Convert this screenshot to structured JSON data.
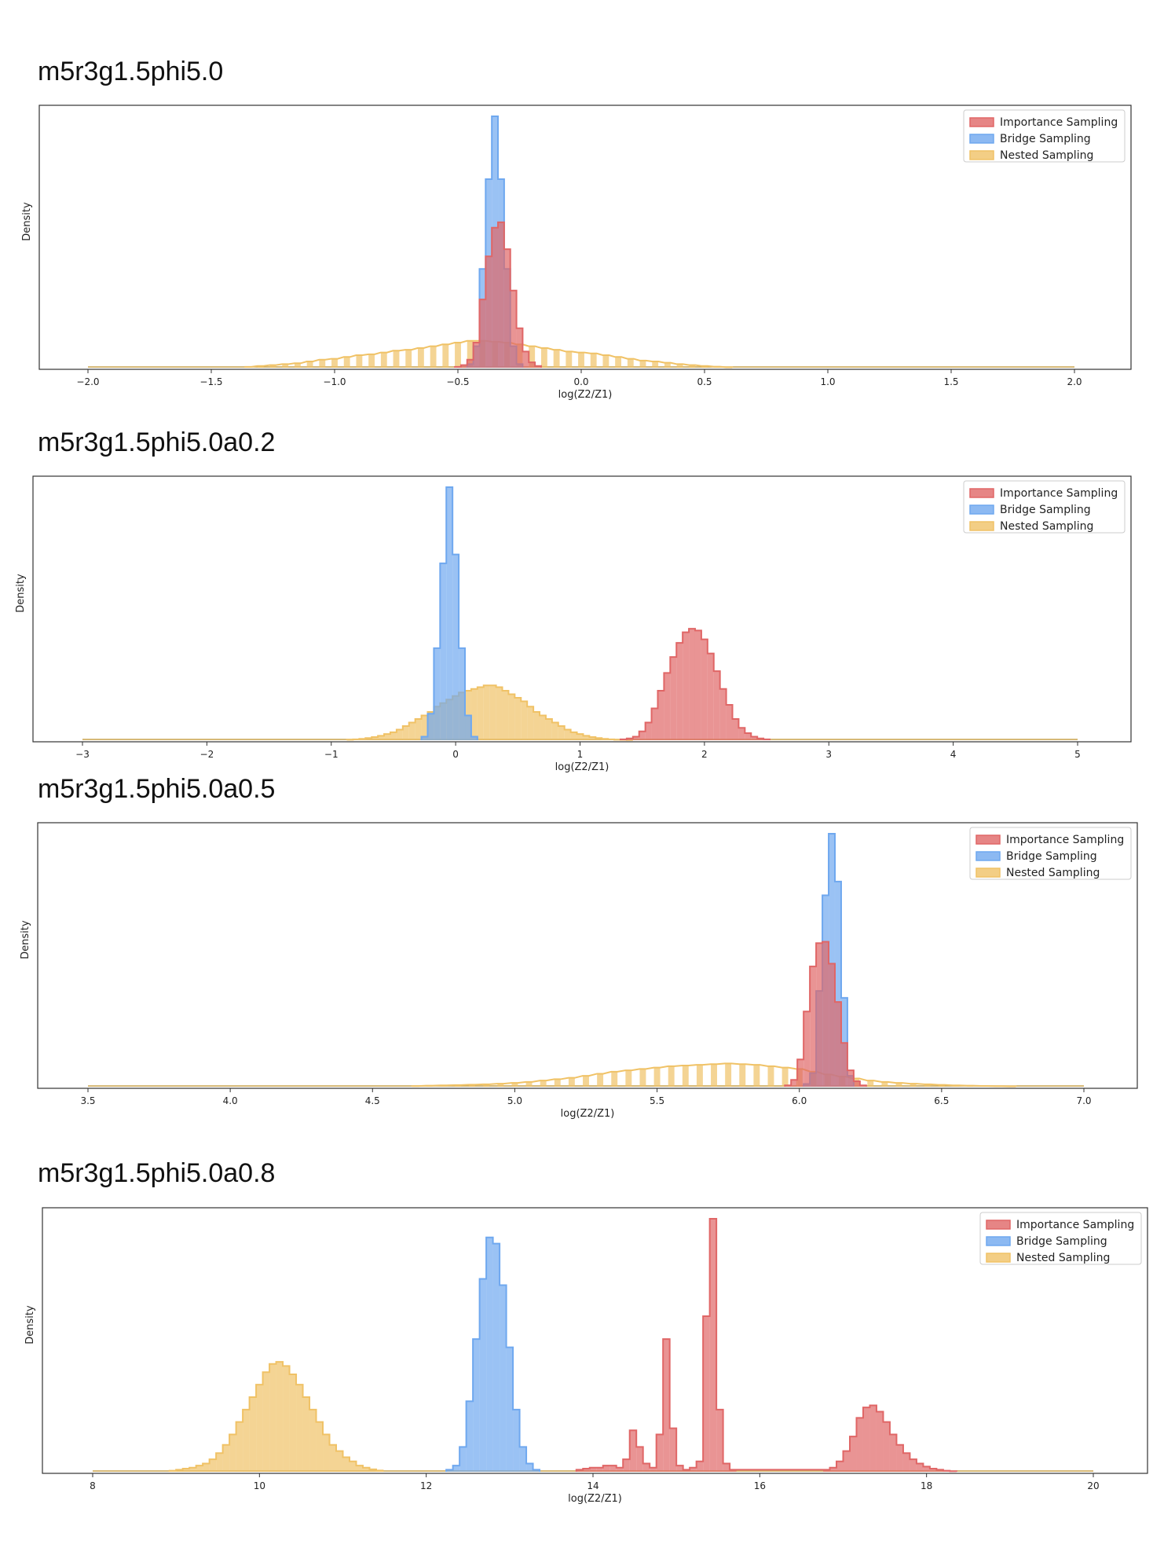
{
  "colors": {
    "Importance Sampling": "#e06666",
    "Bridge Sampling": "#6fa8ef",
    "Nested Sampling": "#f0c266"
  },
  "chart_data": [
    {
      "type": "histogram",
      "title": "m5r3g1.5phi5.0",
      "xlabel": "log(Z2/Z1)",
      "ylabel": "Density",
      "xlim": [
        -2.0,
        2.0
      ],
      "xticks": [
        -2.0,
        -1.5,
        -1.0,
        -0.5,
        0.0,
        0.5,
        1.0,
        1.5,
        2.0
      ],
      "xtick_labels": [
        "−2.0",
        "−1.5",
        "−1.0",
        "−0.5",
        "0.0",
        "0.5",
        "1.0",
        "1.5",
        "2.0"
      ],
      "legend": "top-right",
      "series": [
        {
          "name": "Importance Sampling",
          "bin_width": 0.025,
          "x": [
            -0.5,
            -0.475,
            -0.45,
            -0.425,
            -0.4,
            -0.375,
            -0.35,
            -0.325,
            -0.3,
            -0.275,
            -0.25,
            -0.225,
            -0.2,
            -0.175
          ],
          "values": [
            0.005,
            0.015,
            0.045,
            0.14,
            0.38,
            0.62,
            0.78,
            0.81,
            0.66,
            0.43,
            0.22,
            0.09,
            0.03,
            0.01
          ]
        },
        {
          "name": "Bridge Sampling",
          "bin_width": 0.025,
          "x": [
            -0.45,
            -0.425,
            -0.4,
            -0.375,
            -0.35,
            -0.325,
            -0.3,
            -0.275,
            -0.25
          ],
          "values": [
            0.02,
            0.12,
            0.55,
            1.05,
            1.4,
            1.05,
            0.55,
            0.12,
            0.02
          ]
        },
        {
          "name": "Nested Sampling",
          "bin_width": 0.025,
          "x": [
            -1.35,
            -1.3,
            -1.25,
            -1.2,
            -1.15,
            -1.1,
            -1.05,
            -1.0,
            -0.95,
            -0.9,
            -0.85,
            -0.8,
            -0.75,
            -0.7,
            -0.65,
            -0.6,
            -0.55,
            -0.5,
            -0.45,
            -0.4,
            -0.35,
            -0.3,
            -0.25,
            -0.2,
            -0.15,
            -0.1,
            -0.05,
            0.0,
            0.05,
            0.1,
            0.15,
            0.2,
            0.25,
            0.3,
            0.35,
            0.4,
            0.45,
            0.5,
            0.55,
            0.6
          ],
          "values": [
            0.005,
            0.01,
            0.015,
            0.02,
            0.025,
            0.035,
            0.045,
            0.05,
            0.06,
            0.07,
            0.075,
            0.085,
            0.095,
            0.1,
            0.11,
            0.12,
            0.13,
            0.14,
            0.15,
            0.15,
            0.145,
            0.14,
            0.13,
            0.12,
            0.11,
            0.1,
            0.09,
            0.085,
            0.08,
            0.07,
            0.06,
            0.05,
            0.04,
            0.035,
            0.028,
            0.02,
            0.015,
            0.01,
            0.006,
            0.003
          ]
        }
      ]
    },
    {
      "type": "histogram",
      "title": "m5r3g1.5phi5.0a0.2",
      "xlabel": "log(Z2/Z1)",
      "ylabel": "Density",
      "xlim": [
        -3,
        5
      ],
      "xticks": [
        -3,
        -2,
        -1,
        0,
        1,
        2,
        3,
        4,
        5
      ],
      "xtick_labels": [
        "−3",
        "−2",
        "−1",
        "0",
        "1",
        "2",
        "3",
        "4",
        "5"
      ],
      "legend": "top-right",
      "series": [
        {
          "name": "Importance Sampling",
          "bin_width": 0.05,
          "x": [
            1.35,
            1.4,
            1.45,
            1.5,
            1.55,
            1.6,
            1.65,
            1.7,
            1.75,
            1.8,
            1.85,
            1.9,
            1.95,
            2.0,
            2.05,
            2.1,
            2.15,
            2.2,
            2.25,
            2.3,
            2.35,
            2.4,
            2.45,
            2.5
          ],
          "values": [
            0.005,
            0.01,
            0.02,
            0.05,
            0.1,
            0.18,
            0.28,
            0.38,
            0.47,
            0.55,
            0.61,
            0.63,
            0.62,
            0.57,
            0.49,
            0.39,
            0.29,
            0.2,
            0.12,
            0.07,
            0.04,
            0.02,
            0.01,
            0.005
          ]
        },
        {
          "name": "Bridge Sampling",
          "bin_width": 0.05,
          "x": [
            -0.25,
            -0.2,
            -0.15,
            -0.1,
            -0.05,
            0.0,
            0.05,
            0.1,
            0.15
          ],
          "values": [
            0.02,
            0.15,
            0.52,
            1.0,
            1.43,
            1.05,
            0.52,
            0.14,
            0.02
          ]
        },
        {
          "name": "Nested Sampling",
          "bin_width": 0.05,
          "x": [
            -0.85,
            -0.8,
            -0.75,
            -0.7,
            -0.65,
            -0.6,
            -0.55,
            -0.5,
            -0.45,
            -0.4,
            -0.35,
            -0.3,
            -0.25,
            -0.2,
            -0.15,
            -0.1,
            -0.05,
            0.0,
            0.05,
            0.1,
            0.15,
            0.2,
            0.25,
            0.3,
            0.35,
            0.4,
            0.45,
            0.5,
            0.55,
            0.6,
            0.65,
            0.7,
            0.75,
            0.8,
            0.85,
            0.9,
            0.95,
            1.0,
            1.05,
            1.1,
            1.15,
            1.2,
            1.25,
            1.3,
            1.35,
            1.4
          ],
          "values": [
            0.003,
            0.005,
            0.008,
            0.012,
            0.018,
            0.025,
            0.035,
            0.045,
            0.06,
            0.08,
            0.1,
            0.12,
            0.14,
            0.16,
            0.19,
            0.21,
            0.23,
            0.25,
            0.27,
            0.28,
            0.29,
            0.3,
            0.31,
            0.31,
            0.3,
            0.28,
            0.26,
            0.24,
            0.22,
            0.19,
            0.16,
            0.14,
            0.12,
            0.1,
            0.08,
            0.06,
            0.045,
            0.035,
            0.025,
            0.018,
            0.012,
            0.008,
            0.005,
            0.003,
            0.002,
            0.001
          ]
        }
      ]
    },
    {
      "type": "histogram",
      "title": "m5r3g1.5phi5.0a0.5",
      "xlabel": "log(Z2/Z1)",
      "ylabel": "Density",
      "xlim": [
        3.5,
        7.0
      ],
      "xticks": [
        3.5,
        4.0,
        4.5,
        5.0,
        5.5,
        6.0,
        6.5,
        7.0
      ],
      "xtick_labels": [
        "3.5",
        "4.0",
        "4.5",
        "5.0",
        "5.5",
        "6.0",
        "6.5",
        "7.0"
      ],
      "legend": "top-right",
      "series": [
        {
          "name": "Importance Sampling",
          "bin_width": 0.0219,
          "x": [
            5.96,
            5.982,
            6.004,
            6.026,
            6.048,
            6.07,
            6.092,
            6.114,
            6.136,
            6.158,
            6.18,
            6.202,
            6.224
          ],
          "values": [
            0.01,
            0.05,
            0.2,
            0.55,
            0.88,
            1.05,
            1.06,
            0.9,
            0.62,
            0.32,
            0.12,
            0.04,
            0.01
          ]
        },
        {
          "name": "Bridge Sampling",
          "bin_width": 0.0219,
          "x": [
            6.026,
            6.048,
            6.07,
            6.092,
            6.114,
            6.136,
            6.158,
            6.18
          ],
          "values": [
            0.02,
            0.1,
            0.7,
            1.4,
            1.85,
            1.5,
            0.65,
            0.08
          ]
        },
        {
          "name": "Nested Sampling",
          "bin_width": 0.0219,
          "x": [
            4.65,
            4.7,
            4.75,
            4.8,
            4.85,
            4.9,
            4.95,
            5.0,
            5.05,
            5.1,
            5.15,
            5.2,
            5.25,
            5.3,
            5.35,
            5.4,
            5.45,
            5.5,
            5.55,
            5.6,
            5.65,
            5.7,
            5.75,
            5.8,
            5.85,
            5.9,
            5.95,
            6.0,
            6.05,
            6.1,
            6.15,
            6.2,
            6.25,
            6.3,
            6.35,
            6.4,
            6.45,
            6.5,
            6.55,
            6.6,
            6.65,
            6.7,
            6.75
          ],
          "values": [
            0.005,
            0.008,
            0.01,
            0.012,
            0.015,
            0.018,
            0.022,
            0.028,
            0.035,
            0.045,
            0.055,
            0.065,
            0.08,
            0.095,
            0.11,
            0.12,
            0.13,
            0.14,
            0.15,
            0.155,
            0.16,
            0.165,
            0.17,
            0.165,
            0.16,
            0.15,
            0.14,
            0.13,
            0.11,
            0.09,
            0.075,
            0.06,
            0.045,
            0.035,
            0.028,
            0.022,
            0.018,
            0.014,
            0.01,
            0.008,
            0.006,
            0.004,
            0.003
          ]
        }
      ]
    },
    {
      "type": "histogram",
      "title": "m5r3g1.5phi5.0a0.8",
      "xlabel": "log(Z2/Z1)",
      "ylabel": "Density",
      "xlim": [
        8,
        20
      ],
      "xticks": [
        8,
        10,
        12,
        14,
        16,
        18,
        20
      ],
      "xtick_labels": [
        "8",
        "10",
        "12",
        "14",
        "16",
        "18",
        "20"
      ],
      "legend": "top-right",
      "series": [
        {
          "name": "Importance Sampling",
          "bin_width": 0.08,
          "x": [
            13.84,
            13.92,
            14.0,
            14.08,
            14.16,
            14.24,
            14.32,
            14.4,
            14.48,
            14.56,
            14.64,
            14.72,
            14.8,
            14.88,
            14.96,
            15.04,
            15.12,
            15.2,
            15.28,
            15.36,
            15.44,
            15.52,
            15.6,
            15.68,
            16.8,
            16.88,
            16.96,
            17.04,
            17.12,
            17.2,
            17.28,
            17.36,
            17.44,
            17.52,
            17.6,
            17.68,
            17.76,
            17.84,
            17.92,
            18.0,
            18.08,
            18.16,
            18.24,
            18.32
          ],
          "values": [
            0.01,
            0.015,
            0.02,
            0.02,
            0.03,
            0.03,
            0.02,
            0.06,
            0.2,
            0.12,
            0.04,
            0.02,
            0.18,
            0.64,
            0.21,
            0.03,
            0.01,
            0.02,
            0.05,
            0.75,
            1.22,
            0.3,
            0.04,
            0.01,
            0.01,
            0.02,
            0.05,
            0.1,
            0.17,
            0.26,
            0.31,
            0.32,
            0.29,
            0.24,
            0.18,
            0.13,
            0.09,
            0.06,
            0.04,
            0.025,
            0.015,
            0.01,
            0.005,
            0.003
          ]
        },
        {
          "name": "Bridge Sampling",
          "bin_width": 0.08,
          "x": [
            12.28,
            12.36,
            12.44,
            12.52,
            12.6,
            12.68,
            12.76,
            12.84,
            12.92,
            13.0,
            13.08,
            13.16,
            13.24,
            13.32
          ],
          "values": [
            0.01,
            0.03,
            0.12,
            0.34,
            0.64,
            0.93,
            1.13,
            1.1,
            0.9,
            0.6,
            0.3,
            0.12,
            0.04,
            0.01
          ]
        },
        {
          "name": "Nested Sampling",
          "bin_width": 0.08,
          "x": [
            8.96,
            9.04,
            9.12,
            9.2,
            9.28,
            9.36,
            9.44,
            9.52,
            9.6,
            9.68,
            9.76,
            9.84,
            9.92,
            10.0,
            10.08,
            10.16,
            10.24,
            10.32,
            10.4,
            10.48,
            10.56,
            10.64,
            10.72,
            10.8,
            10.88,
            10.96,
            11.04,
            11.12,
            11.2,
            11.28,
            11.36,
            11.44
          ],
          "values": [
            0.005,
            0.01,
            0.015,
            0.02,
            0.03,
            0.04,
            0.06,
            0.09,
            0.13,
            0.18,
            0.24,
            0.3,
            0.36,
            0.42,
            0.48,
            0.52,
            0.53,
            0.51,
            0.47,
            0.42,
            0.36,
            0.3,
            0.24,
            0.18,
            0.13,
            0.1,
            0.07,
            0.05,
            0.03,
            0.02,
            0.012,
            0.006
          ]
        }
      ]
    }
  ]
}
